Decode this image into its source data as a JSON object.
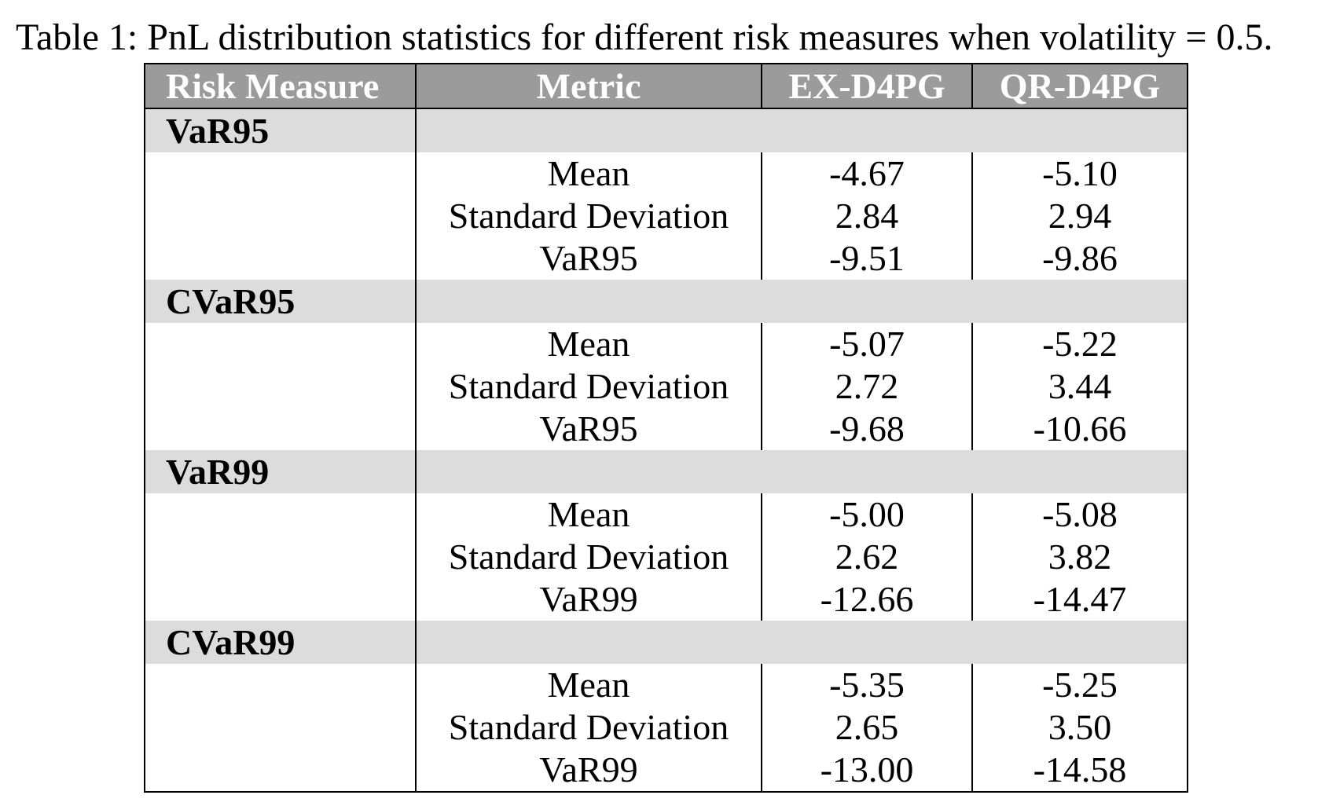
{
  "caption": "Table 1: PnL distribution statistics for different risk measures when volatility = 0.5.",
  "table": {
    "headers": {
      "risk_measure": "Risk Measure",
      "metric": "Metric",
      "ex": "EX-D4PG",
      "qr": "QR-D4PG"
    },
    "groups": [
      {
        "name": "VaR95",
        "rows": [
          {
            "metric": "Mean",
            "ex": "-4.67",
            "qr": "-5.10"
          },
          {
            "metric": "Standard Deviation",
            "ex": "2.84",
            "qr": "2.94"
          },
          {
            "metric": "VaR95",
            "ex": "-9.51",
            "qr": "-9.86"
          }
        ]
      },
      {
        "name": "CVaR95",
        "rows": [
          {
            "metric": "Mean",
            "ex": "-5.07",
            "qr": "-5.22"
          },
          {
            "metric": "Standard Deviation",
            "ex": "2.72",
            "qr": "3.44"
          },
          {
            "metric": "VaR95",
            "ex": "-9.68",
            "qr": "-10.66"
          }
        ]
      },
      {
        "name": "VaR99",
        "rows": [
          {
            "metric": "Mean",
            "ex": "-5.00",
            "qr": "-5.08"
          },
          {
            "metric": "Standard Deviation",
            "ex": "2.62",
            "qr": "3.82"
          },
          {
            "metric": "VaR99",
            "ex": "-12.66",
            "qr": "-14.47"
          }
        ]
      },
      {
        "name": "CVaR99",
        "rows": [
          {
            "metric": "Mean",
            "ex": "-5.35",
            "qr": "-5.25"
          },
          {
            "metric": "Standard Deviation",
            "ex": "2.65",
            "qr": "3.50"
          },
          {
            "metric": "VaR99",
            "ex": "-13.00",
            "qr": "-14.58"
          }
        ]
      }
    ],
    "colors": {
      "header_bg": "#9b9b9b",
      "header_text": "#ffffff",
      "group_bg": "#dcdcdc",
      "border": "#000000"
    }
  }
}
